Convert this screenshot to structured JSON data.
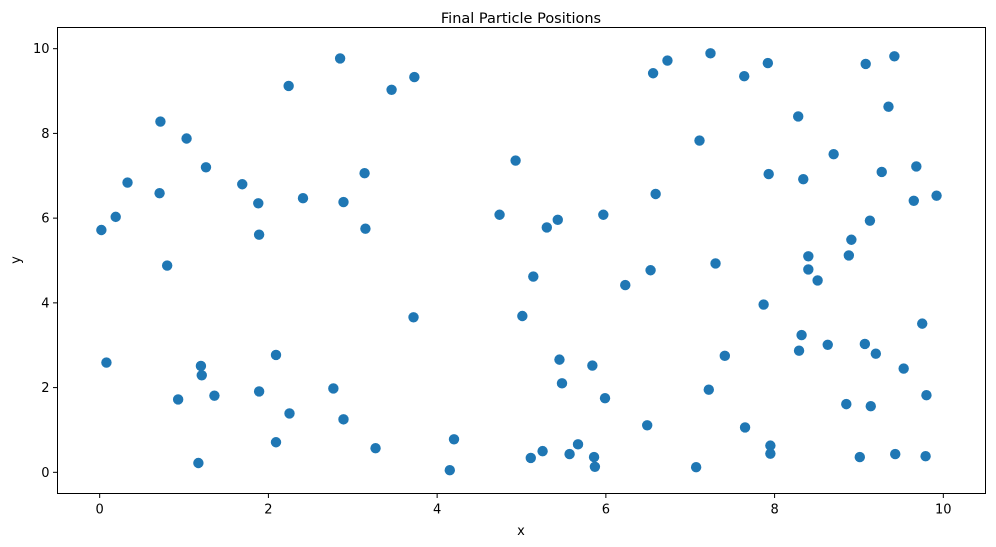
{
  "chart_data": {
    "type": "scatter",
    "title": "Final Particle Positions",
    "xlabel": "x",
    "ylabel": "y",
    "xlim": [
      -0.5,
      10.5
    ],
    "ylim": [
      -0.5,
      10.5
    ],
    "xticks": [
      0,
      2,
      4,
      6,
      8,
      10
    ],
    "yticks": [
      0,
      2,
      4,
      6,
      8,
      10
    ],
    "grid": false,
    "legend": "none",
    "color": "#1f77b4",
    "series": [
      {
        "x": [
          0.02,
          0.19,
          0.33,
          0.08,
          0.72,
          0.71,
          0.8,
          1.03,
          1.26,
          1.69,
          1.88,
          1.89,
          2.24,
          2.41,
          2.85,
          2.89,
          3.14,
          3.15,
          3.46,
          3.73,
          3.72,
          0.93,
          1.2,
          1.21,
          1.36,
          1.17,
          1.89,
          2.09,
          2.09,
          2.25,
          2.77,
          2.89,
          3.27,
          4.15,
          4.2,
          4.74,
          4.93,
          5.01,
          5.14,
          5.3,
          5.43,
          5.45,
          5.48,
          5.11,
          5.25,
          5.57,
          5.67,
          5.84,
          5.86,
          5.87,
          5.97,
          5.99,
          6.23,
          6.49,
          6.53,
          6.56,
          6.59,
          6.73,
          7.07,
          7.11,
          7.22,
          7.24,
          7.3,
          7.41,
          7.64,
          7.65,
          7.87,
          7.92,
          7.93,
          7.95,
          7.95,
          8.28,
          8.29,
          8.32,
          8.34,
          8.4,
          8.4,
          8.51,
          8.63,
          8.7,
          8.85,
          8.88,
          8.91,
          9.01,
          9.07,
          9.08,
          9.13,
          9.14,
          9.2,
          9.27,
          9.35,
          9.42,
          9.43,
          9.53,
          9.65,
          9.68,
          9.75,
          9.79,
          9.8,
          9.92
        ],
        "y": [
          5.72,
          6.03,
          6.84,
          2.59,
          8.28,
          6.59,
          4.88,
          7.88,
          7.2,
          6.8,
          6.35,
          5.61,
          9.12,
          6.47,
          9.77,
          6.38,
          7.06,
          5.75,
          9.03,
          9.33,
          3.66,
          1.72,
          2.51,
          2.29,
          1.81,
          0.22,
          1.91,
          2.77,
          0.71,
          1.39,
          1.98,
          1.25,
          0.57,
          0.05,
          0.78,
          6.08,
          7.36,
          3.69,
          4.62,
          5.78,
          5.96,
          2.66,
          2.1,
          0.34,
          0.5,
          0.43,
          0.66,
          2.52,
          0.36,
          0.13,
          6.08,
          1.75,
          4.42,
          1.11,
          4.77,
          9.42,
          6.57,
          9.72,
          0.12,
          7.83,
          1.95,
          9.89,
          4.93,
          2.75,
          9.35,
          1.06,
          3.96,
          9.66,
          7.04,
          0.63,
          0.44,
          8.4,
          2.87,
          3.24,
          6.92,
          5.1,
          4.79,
          4.53,
          3.01,
          7.51,
          1.61,
          5.12,
          5.49,
          0.36,
          3.03,
          9.64,
          5.94,
          1.56,
          2.8,
          7.09,
          8.63,
          9.82,
          0.43,
          2.45,
          6.41,
          7.22,
          3.51,
          0.38,
          1.82,
          6.53
        ]
      }
    ]
  }
}
